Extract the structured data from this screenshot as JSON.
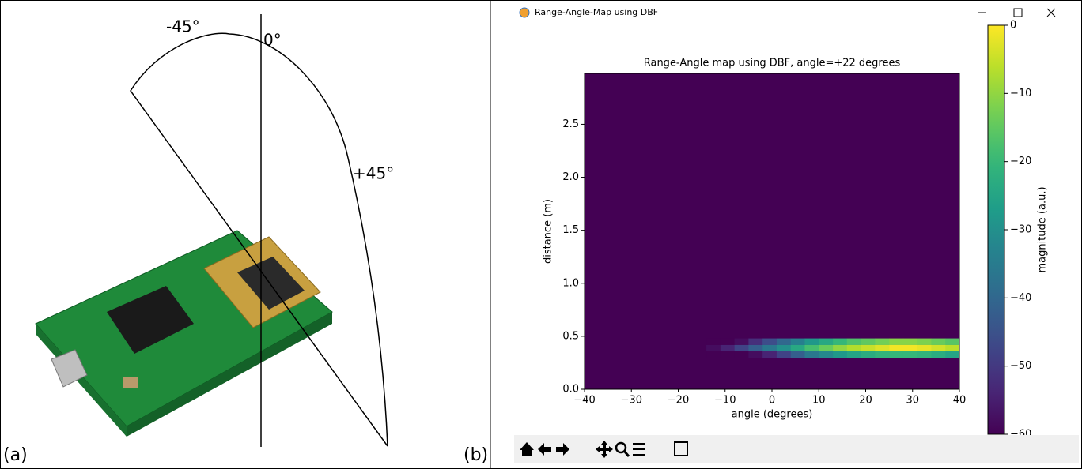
{
  "panel_a": {
    "label": "(a)",
    "angles": [
      "-45°",
      "0°",
      "+45°"
    ]
  },
  "panel_b": {
    "label": "(b)",
    "window_title": "Range-Angle-Map using DBF",
    "chart_data": {
      "type": "heatmap",
      "title": "Range-Angle map using DBF, angle=+22 degrees",
      "x_label": "angle (degrees)",
      "y_label": "distance (m)",
      "colorbar_label": "magnitude (a.u.)",
      "xlim": [
        -40,
        40
      ],
      "ylim": [
        0,
        2.98
      ],
      "xticks": [
        {
          "value": -40,
          "label": "−40"
        },
        {
          "value": -30,
          "label": "−30"
        },
        {
          "value": -20,
          "label": "−20"
        },
        {
          "value": -10,
          "label": "−10"
        },
        0,
        10,
        20,
        30,
        40
      ],
      "yticks": [
        {
          "value": 0,
          "label": "0.0"
        },
        0.5,
        {
          "value": 1,
          "label": "1.0"
        },
        1.5,
        {
          "value": 2,
          "label": "2.0"
        },
        2.5
      ],
      "colormap": "viridis",
      "clim": [
        -60,
        0
      ],
      "cticks": [
        0,
        {
          "value": -10,
          "label": "−10"
        },
        {
          "value": -20,
          "label": "−20"
        },
        {
          "value": -30,
          "label": "−30"
        },
        {
          "value": -40,
          "label": "−40"
        },
        {
          "value": -50,
          "label": "−50"
        },
        {
          "value": -60,
          "label": "−60"
        }
      ],
      "background": -60,
      "x_edges": [
        -14,
        -11,
        -8,
        -5,
        -2,
        1,
        4,
        7,
        10,
        13,
        16,
        19,
        22,
        25,
        28,
        31,
        34,
        37,
        40
      ],
      "y_edges": [
        0.3,
        0.36,
        0.42,
        0.48
      ],
      "values": [
        [
          -60,
          -60,
          -60,
          -58,
          -54,
          -48,
          -42,
          -36,
          -32,
          -28,
          -25,
          -23,
          -21,
          -20,
          -20,
          -21,
          -23,
          -25
        ],
        [
          -58,
          -54,
          -48,
          -42,
          -36,
          -30,
          -24,
          -18,
          -14,
          -10,
          -7,
          -5,
          -3,
          -1,
          -1,
          -2,
          -4,
          -6
        ],
        [
          -60,
          -60,
          -58,
          -52,
          -46,
          -40,
          -34,
          -28,
          -24,
          -20,
          -17,
          -15,
          -13,
          -11,
          -11,
          -12,
          -14,
          -16
        ]
      ]
    }
  }
}
